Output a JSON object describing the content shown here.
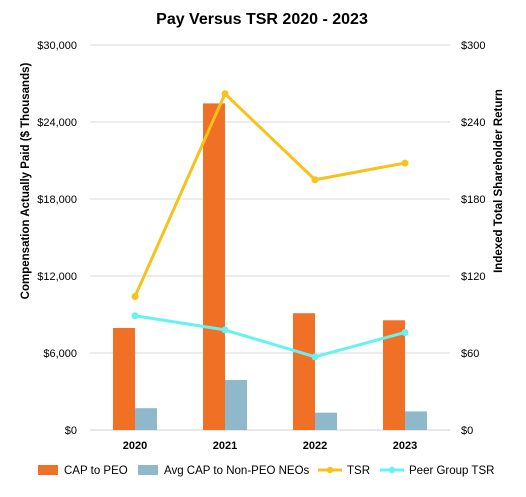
{
  "chart_data": {
    "type": "bar",
    "title": "Pay Versus TSR 2020 - 2023",
    "categories": [
      "2020",
      "2021",
      "2022",
      "2023"
    ],
    "y_left": {
      "label": "Compensation Actually Paid ($ Thousands)",
      "range": [
        0,
        30000
      ],
      "ticks": [
        0,
        6000,
        12000,
        18000,
        24000,
        30000
      ],
      "tick_labels": [
        "$0",
        "$6,000",
        "$12,000",
        "$18,000",
        "$24,000",
        "$30,000"
      ]
    },
    "y_right": {
      "label": "Indexed Total Shareholder Return",
      "range": [
        0,
        300
      ],
      "ticks": [
        0,
        60,
        120,
        180,
        240,
        300
      ],
      "tick_labels": [
        "$0",
        "$60",
        "$120",
        "$180",
        "$240",
        "$300"
      ]
    },
    "grid": true,
    "legend_position": "bottom",
    "bar_series": [
      {
        "name": "CAP to PEO",
        "color": "#F07026",
        "values": [
          7950,
          25450,
          9100,
          8550
        ]
      },
      {
        "name": "Avg CAP to Non-PEO NEOs",
        "color": "#8FB8CB",
        "values": [
          1700,
          3900,
          1350,
          1450
        ]
      }
    ],
    "line_series": [
      {
        "name": "TSR",
        "color": "#F7C21C",
        "axis": "right",
        "values": [
          104,
          262,
          195,
          208
        ]
      },
      {
        "name": "Peer Group TSR",
        "color": "#66F2F2",
        "axis": "right",
        "values": [
          89,
          78,
          57,
          76
        ]
      }
    ]
  }
}
